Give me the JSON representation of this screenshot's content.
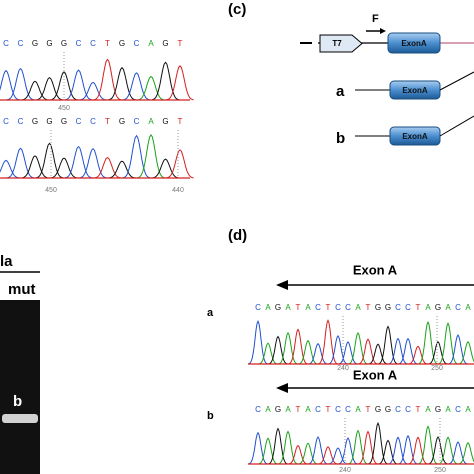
{
  "panel_b": {
    "traces": [
      {
        "sequence": [
          "C",
          "C",
          "G",
          "G",
          "G",
          "C",
          "C",
          "T",
          "G",
          "C",
          "A",
          "G",
          "T"
        ],
        "ticks": [
          "450"
        ]
      },
      {
        "sequence": [
          "C",
          "C",
          "G",
          "G",
          "G",
          "C",
          "C",
          "T",
          "G",
          "C",
          "A",
          "G",
          "T"
        ],
        "ticks": [
          "450",
          "440"
        ]
      }
    ]
  },
  "panel_c": {
    "label": "(c)",
    "primer": "F",
    "promoter": "T7",
    "exon": "ExonA",
    "rows": [
      {
        "label": "a",
        "exon": "ExonA"
      },
      {
        "label": "b",
        "exon": "ExonA"
      }
    ]
  },
  "gel": {
    "header": "la",
    "lane": "mut",
    "band": "b"
  },
  "panel_d": {
    "label": "(d)",
    "tracks": [
      {
        "row": "a",
        "arrow": "Exon A",
        "sequence": [
          "C",
          "A",
          "G",
          "A",
          "T",
          "A",
          "C",
          "T",
          "C",
          "C",
          "A",
          "T",
          "G",
          "G",
          "C",
          "C",
          "T",
          "A",
          "G",
          "A",
          "C",
          "A"
        ],
        "ticks": [
          "240",
          "250"
        ]
      },
      {
        "row": "b",
        "arrow": "Exon A",
        "sequence": [
          "C",
          "A",
          "G",
          "A",
          "T",
          "A",
          "C",
          "T",
          "C",
          "C",
          "A",
          "T",
          "G",
          "G",
          "C",
          "C",
          "T",
          "A",
          "G",
          "A",
          "C",
          "A"
        ],
        "ticks": [
          "240",
          "250"
        ]
      }
    ]
  }
}
